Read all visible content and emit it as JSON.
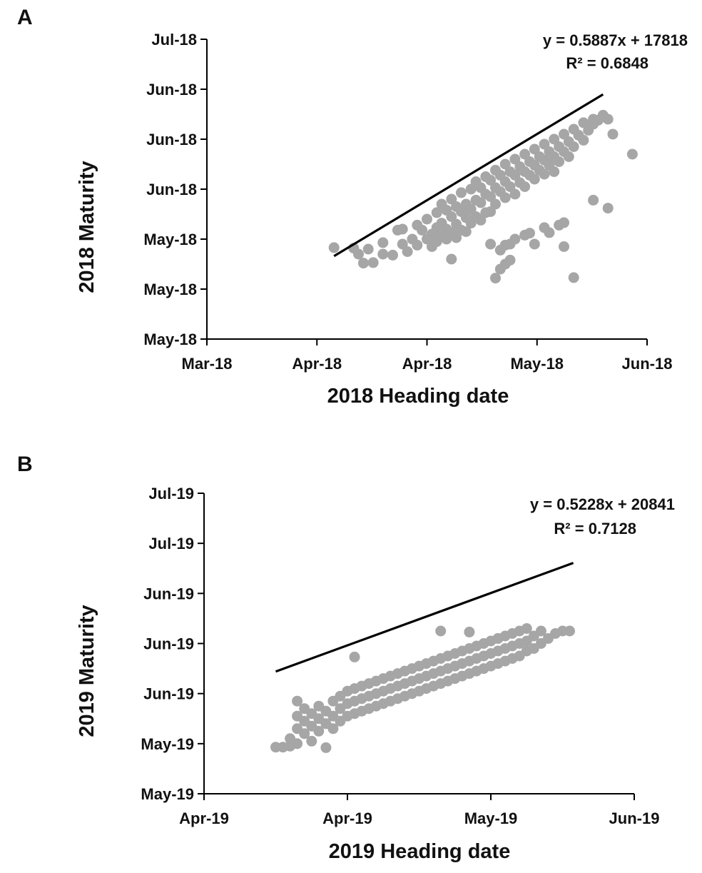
{
  "chart_data": [
    {
      "panel_label": "A",
      "type": "scatter",
      "xlabel": "2018 Heading date",
      "ylabel": "2018 Maturity",
      "x_tick_labels": [
        "Mar-18",
        "Apr-18",
        "Apr-18",
        "May-18",
        "Jun-18"
      ],
      "y_tick_labels": [
        "May-18",
        "May-18",
        "May-18",
        "Jun-18",
        "Jun-18",
        "Jun-18",
        "Jul-18"
      ],
      "xlim": [
        43160,
        43250
      ],
      "ylim": [
        43225,
        43285
      ],
      "x_ticks": [
        43160,
        43182.5,
        43205,
        43227.5,
        43250
      ],
      "y_ticks": [
        43225,
        43235,
        43245,
        43255,
        43265,
        43275,
        43285
      ],
      "marker_color": "#a6a6a6",
      "line_color": "#000000",
      "trendline": {
        "slope": 0.5887,
        "intercept": 17818,
        "x_range": [
          43186,
          43241
        ]
      },
      "equation_label": "y = 0.5887x + 17818",
      "r2_label": "R² = 0.6848",
      "points": [
        [
          43186,
          43243.3
        ],
        [
          43190,
          43243.2
        ],
        [
          43191,
          43242.0
        ],
        [
          43192,
          43240.2
        ],
        [
          43193,
          43243.0
        ],
        [
          43194,
          43240.3
        ],
        [
          43196,
          43242.0
        ],
        [
          43196,
          43244.3
        ],
        [
          43198,
          43241.8
        ],
        [
          43199,
          43246.8
        ],
        [
          43200,
          43247.0
        ],
        [
          43200,
          43244.0
        ],
        [
          43201,
          43242.5
        ],
        [
          43202,
          43245.0
        ],
        [
          43203,
          43247.8
        ],
        [
          43203,
          43243.8
        ],
        [
          43204,
          43246.8
        ],
        [
          43205,
          43249.0
        ],
        [
          43205,
          43245.0
        ],
        [
          43206,
          43246.0
        ],
        [
          43206,
          43243.5
        ],
        [
          43207,
          43250.3
        ],
        [
          43207,
          43247.3
        ],
        [
          43207,
          43244.5
        ],
        [
          43208,
          43252.0
        ],
        [
          43208,
          43248.2
        ],
        [
          43208,
          43245.6
        ],
        [
          43209,
          43250.8
        ],
        [
          43209,
          43247.0
        ],
        [
          43209,
          43245.0
        ],
        [
          43210,
          43253.0
        ],
        [
          43210,
          43249.5
        ],
        [
          43210,
          43246.3
        ],
        [
          43211,
          43251.5
        ],
        [
          43211,
          43248.0
        ],
        [
          43211,
          43245.3
        ],
        [
          43212,
          43254.3
        ],
        [
          43212,
          43250.5
        ],
        [
          43212,
          43246.8
        ],
        [
          43213,
          43252.0
        ],
        [
          43213,
          43249.3
        ],
        [
          43213,
          43246.5
        ],
        [
          43214,
          43255.0
        ],
        [
          43214,
          43251.0
        ],
        [
          43214,
          43248.2
        ],
        [
          43215,
          43256.5
        ],
        [
          43215,
          43252.8
        ],
        [
          43215,
          43249.5
        ],
        [
          43216,
          43255.3
        ],
        [
          43216,
          43252.3
        ],
        [
          43216,
          43248.8
        ],
        [
          43217,
          43257.5
        ],
        [
          43217,
          43254.0
        ],
        [
          43217,
          43250.3
        ],
        [
          43218,
          43256.8
        ],
        [
          43218,
          43253.5
        ],
        [
          43218,
          43250.5
        ],
        [
          43219,
          43258.8
        ],
        [
          43219,
          43255.3
        ],
        [
          43219,
          43252.0
        ],
        [
          43220,
          43257.8
        ],
        [
          43220,
          43254.5
        ],
        [
          43221,
          43260.0
        ],
        [
          43221,
          43256.5
        ],
        [
          43221,
          43253.3
        ],
        [
          43222,
          43258.5
        ],
        [
          43222,
          43255.5
        ],
        [
          43223,
          43261.0
        ],
        [
          43223,
          43257.8
        ],
        [
          43223,
          43254.0
        ],
        [
          43224,
          43259.5
        ],
        [
          43224,
          43256.3
        ],
        [
          43225,
          43262.0
        ],
        [
          43225,
          43258.5
        ],
        [
          43225,
          43255.5
        ],
        [
          43226,
          43260.5
        ],
        [
          43226,
          43257.8
        ],
        [
          43227,
          43263.0
        ],
        [
          43227,
          43259.8
        ],
        [
          43227,
          43257.0
        ],
        [
          43228,
          43261.5
        ],
        [
          43228,
          43258.8
        ],
        [
          43229,
          43264.0
        ],
        [
          43229,
          43260.8
        ],
        [
          43229,
          43258.0
        ],
        [
          43230,
          43262.5
        ],
        [
          43230,
          43259.8
        ],
        [
          43231,
          43265.0
        ],
        [
          43231,
          43261.5
        ],
        [
          43231,
          43258.5
        ],
        [
          43232,
          43263.5
        ],
        [
          43232,
          43260.5
        ],
        [
          43233,
          43266.0
        ],
        [
          43233,
          43262.5
        ],
        [
          43234,
          43264.5
        ],
        [
          43234,
          43261.5
        ],
        [
          43235,
          43267.0
        ],
        [
          43235,
          43263.5
        ],
        [
          43236,
          43265.8
        ],
        [
          43237,
          43268.3
        ],
        [
          43237,
          43264.8
        ],
        [
          43238,
          43266.8
        ],
        [
          43239,
          43269.0
        ],
        [
          43239,
          43268.0
        ],
        [
          43240,
          43268.8
        ],
        [
          43241,
          43269.8
        ],
        [
          43242,
          43269.0
        ],
        [
          43243,
          43266.0
        ],
        [
          43247,
          43262.0
        ],
        [
          43210,
          43241.0
        ],
        [
          43218,
          43244.0
        ],
        [
          43220,
          43242.8
        ],
        [
          43221,
          43243.8
        ],
        [
          43222,
          43244.0
        ],
        [
          43223,
          43245.0
        ],
        [
          43225,
          43245.8
        ],
        [
          43226,
          43246.2
        ],
        [
          43227,
          43244.0
        ],
        [
          43229,
          43247.3
        ],
        [
          43230,
          43246.3
        ],
        [
          43232,
          43247.8
        ],
        [
          43233,
          43248.3
        ],
        [
          43233,
          43243.5
        ],
        [
          43219,
          43237.2
        ],
        [
          43220,
          43239.0
        ],
        [
          43221,
          43240.0
        ],
        [
          43222,
          43240.8
        ],
        [
          43235,
          43237.3
        ],
        [
          43239,
          43252.8
        ],
        [
          43242,
          43251.2
        ]
      ]
    },
    {
      "panel_label": "B",
      "type": "scatter",
      "xlabel": "2019 Heading date",
      "ylabel": "2019 Maturity",
      "x_tick_labels": [
        "Apr-19",
        "Apr-19",
        "May-19",
        "Jun-19"
      ],
      "y_tick_labels": [
        "May-19",
        "May-19",
        "Jun-19",
        "Jun-19",
        "Jun-19",
        "Jul-19",
        "Jul-19"
      ],
      "xlim": [
        43560,
        43620
      ],
      "ylim": [
        43595,
        43655
      ],
      "x_ticks": [
        43560,
        43580,
        43600,
        43620
      ],
      "y_ticks": [
        43595,
        43605,
        43615,
        43625,
        43635,
        43645,
        43655
      ],
      "marker_color": "#a6a6a6",
      "line_color": "#000000",
      "trendline": {
        "slope": 0.5228,
        "intercept": 20841,
        "x_range": [
          43570,
          43611.5
        ]
      },
      "equation_label": "y = 0.5228x + 20841",
      "r2_label": "R² = 0.7128",
      "points": [
        [
          43570,
          43604.3
        ],
        [
          43571,
          43604.3
        ],
        [
          43572,
          43604.5
        ],
        [
          43572,
          43606.0
        ],
        [
          43573,
          43608.0
        ],
        [
          43573,
          43610.5
        ],
        [
          43573,
          43613.5
        ],
        [
          43573,
          43605.0
        ],
        [
          43574,
          43607.0
        ],
        [
          43574,
          43609.5
        ],
        [
          43574,
          43612.0
        ],
        [
          43575,
          43608.5
        ],
        [
          43575,
          43611.0
        ],
        [
          43575,
          43605.5
        ],
        [
          43576,
          43607.5
        ],
        [
          43576,
          43610.0
        ],
        [
          43576,
          43612.5
        ],
        [
          43577,
          43609.0
        ],
        [
          43577,
          43611.5
        ],
        [
          43577,
          43604.2
        ],
        [
          43578,
          43608.0
        ],
        [
          43578,
          43610.5
        ],
        [
          43578,
          43613.5
        ],
        [
          43579,
          43609.5
        ],
        [
          43579,
          43612.0
        ],
        [
          43579,
          43614.5
        ],
        [
          43580,
          43610.5
        ],
        [
          43580,
          43613.0
        ],
        [
          43580,
          43615.5
        ],
        [
          43581,
          43611.0
        ],
        [
          43581,
          43613.5
        ],
        [
          43581,
          43616.0
        ],
        [
          43582,
          43611.5
        ],
        [
          43582,
          43614.0
        ],
        [
          43582,
          43616.5
        ],
        [
          43583,
          43612.0
        ],
        [
          43583,
          43614.5
        ],
        [
          43583,
          43617.0
        ],
        [
          43584,
          43612.5
        ],
        [
          43584,
          43615.0
        ],
        [
          43584,
          43617.5
        ],
        [
          43585,
          43613.0
        ],
        [
          43585,
          43615.5
        ],
        [
          43585,
          43618.0
        ],
        [
          43586,
          43613.5
        ],
        [
          43586,
          43616.0
        ],
        [
          43586,
          43618.5
        ],
        [
          43587,
          43614.0
        ],
        [
          43587,
          43616.5
        ],
        [
          43587,
          43619.0
        ],
        [
          43588,
          43614.5
        ],
        [
          43588,
          43617.0
        ],
        [
          43588,
          43619.5
        ],
        [
          43589,
          43615.0
        ],
        [
          43589,
          43617.5
        ],
        [
          43589,
          43620.0
        ],
        [
          43590,
          43615.5
        ],
        [
          43590,
          43618.0
        ],
        [
          43590,
          43620.5
        ],
        [
          43591,
          43616.0
        ],
        [
          43591,
          43618.5
        ],
        [
          43591,
          43621.0
        ],
        [
          43592,
          43616.5
        ],
        [
          43592,
          43619.0
        ],
        [
          43592,
          43621.5
        ],
        [
          43593,
          43617.0
        ],
        [
          43593,
          43619.5
        ],
        [
          43593,
          43622.0
        ],
        [
          43594,
          43617.5
        ],
        [
          43594,
          43620.0
        ],
        [
          43594,
          43622.5
        ],
        [
          43595,
          43618.0
        ],
        [
          43595,
          43620.5
        ],
        [
          43595,
          43623.0
        ],
        [
          43596,
          43618.5
        ],
        [
          43596,
          43621.0
        ],
        [
          43596,
          43623.5
        ],
        [
          43597,
          43619.0
        ],
        [
          43597,
          43621.5
        ],
        [
          43597,
          43624.0
        ],
        [
          43598,
          43619.5
        ],
        [
          43598,
          43622.0
        ],
        [
          43598,
          43624.5
        ],
        [
          43599,
          43620.0
        ],
        [
          43599,
          43622.5
        ],
        [
          43599,
          43625.0
        ],
        [
          43600,
          43620.5
        ],
        [
          43600,
          43623.0
        ],
        [
          43600,
          43625.5
        ],
        [
          43601,
          43621.0
        ],
        [
          43601,
          43623.5
        ],
        [
          43601,
          43626.0
        ],
        [
          43602,
          43621.5
        ],
        [
          43602,
          43624.0
        ],
        [
          43602,
          43626.5
        ],
        [
          43603,
          43622.0
        ],
        [
          43603,
          43624.5
        ],
        [
          43603,
          43627.0
        ],
        [
          43604,
          43622.5
        ],
        [
          43604,
          43625.0
        ],
        [
          43604,
          43627.5
        ],
        [
          43605,
          43623.5
        ],
        [
          43605,
          43625.5
        ],
        [
          43605,
          43628.0
        ],
        [
          43606,
          43624.0
        ],
        [
          43606,
          43626.5
        ],
        [
          43607,
          43625.0
        ],
        [
          43607,
          43627.5
        ],
        [
          43608,
          43626.0
        ],
        [
          43609,
          43627.0
        ],
        [
          43610,
          43627.5
        ],
        [
          43611,
          43627.5
        ],
        [
          43581,
          43622.3
        ],
        [
          43593,
          43627.5
        ],
        [
          43597,
          43627.3
        ],
        [
          43601,
          43626.0
        ]
      ]
    }
  ]
}
